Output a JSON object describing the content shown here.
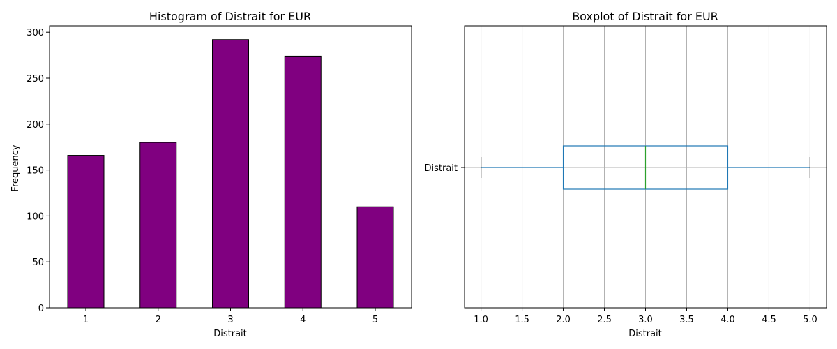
{
  "chart_data": [
    {
      "type": "bar",
      "title": "Histogram of Distrait for EUR",
      "xlabel": "Distrait",
      "ylabel": "Frequency",
      "categories": [
        "1",
        "2",
        "3",
        "4",
        "5"
      ],
      "values": [
        166,
        180,
        292,
        274,
        110
      ],
      "ylim": [
        0,
        307
      ],
      "yticks": [
        0,
        50,
        100,
        150,
        200,
        250,
        300
      ],
      "grid": false,
      "bar_color": "#800080",
      "edge_color": "#000000"
    },
    {
      "type": "boxplot",
      "title": "Boxplot of Distrait for EUR",
      "xlabel": "Distrait",
      "category_label": "Distrait",
      "stats": {
        "min": 1.0,
        "q1": 2.0,
        "median": 3.0,
        "q3": 4.0,
        "max": 5.0
      },
      "xlim": [
        0.8,
        5.2
      ],
      "xticks": [
        "1.0",
        "1.5",
        "2.0",
        "2.5",
        "3.0",
        "3.5",
        "4.0",
        "4.5",
        "5.0"
      ],
      "grid": true,
      "box_color": "#1f77b4",
      "median_color": "#2ca02c",
      "whisker_cap_color": "#000000"
    }
  ]
}
